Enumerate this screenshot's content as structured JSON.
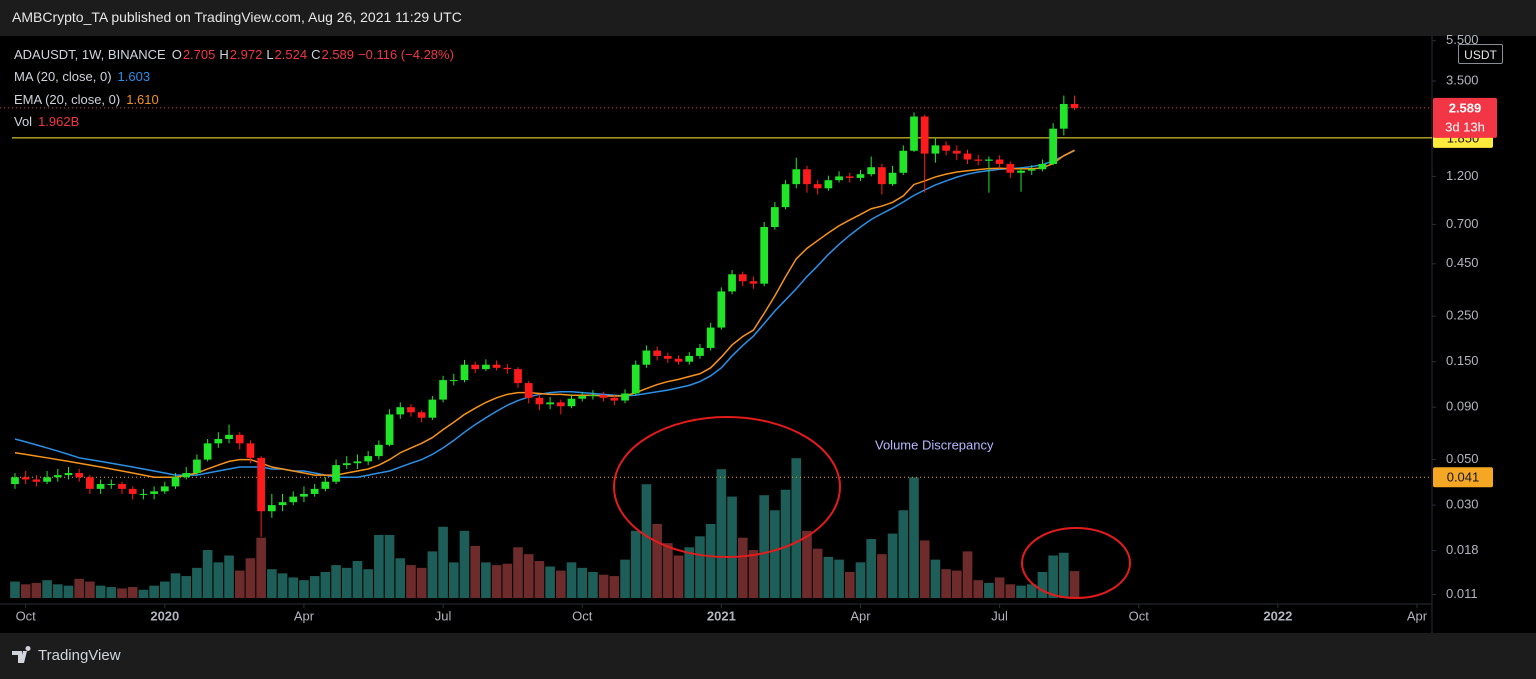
{
  "header": {
    "publisher": "AMBCrypto_TA published on TradingView.com, Aug 26, 2021 11:29 UTC",
    "brand": "TradingView"
  },
  "chart_data": {
    "type": "candlestick",
    "symbol": "ADAUSDT, 1W, BINANCE",
    "ohlc_labels": [
      {
        "key": "O",
        "value": "2.705"
      },
      {
        "key": "H",
        "value": "2.972"
      },
      {
        "key": "L",
        "value": "2.524"
      },
      {
        "key": "C",
        "value": "2.589"
      }
    ],
    "change_label": "−0.116 (−4.28%)",
    "currency": "USDT",
    "countdown": "3d 13h",
    "log_scale": true,
    "grid": false,
    "up_color": "#22e52a",
    "down_color": "#ff1b1b",
    "open": [
      0.038,
      0.041,
      0.04,
      0.039,
      0.041,
      0.042,
      0.043,
      0.041,
      0.036,
      0.038,
      0.038,
      0.036,
      0.034,
      0.034,
      0.035,
      0.037,
      0.041,
      0.043,
      0.05,
      0.06,
      0.063,
      0.066,
      0.06,
      0.051,
      0.028,
      0.03,
      0.031,
      0.033,
      0.034,
      0.036,
      0.039,
      0.047,
      0.048,
      0.049,
      0.052,
      0.059,
      0.083,
      0.09,
      0.085,
      0.08,
      0.098,
      0.122,
      0.122,
      0.145,
      0.138,
      0.145,
      0.14,
      0.138,
      0.118,
      0.1,
      0.093,
      0.095,
      0.091,
      0.099,
      0.102,
      0.103,
      0.1,
      0.097,
      0.105,
      0.145,
      0.17,
      0.16,
      0.155,
      0.15,
      0.16,
      0.175,
      0.22,
      0.33,
      0.4,
      0.37,
      0.36,
      0.68,
      0.85,
      1.1,
      1.3,
      1.1,
      1.05,
      1.15,
      1.2,
      1.18,
      1.23,
      1.33,
      1.1,
      1.25,
      1.6,
      2.35,
      1.55,
      1.7,
      1.6,
      1.55,
      1.45,
      1.43,
      1.45,
      1.38,
      1.25,
      1.28,
      1.3,
      1.38,
      2.05,
      2.705
    ],
    "high": [
      0.043,
      0.044,
      0.042,
      0.044,
      0.045,
      0.046,
      0.045,
      0.042,
      0.04,
      0.04,
      0.039,
      0.037,
      0.036,
      0.037,
      0.039,
      0.043,
      0.046,
      0.053,
      0.063,
      0.068,
      0.074,
      0.068,
      0.062,
      0.052,
      0.034,
      0.034,
      0.035,
      0.037,
      0.038,
      0.041,
      0.05,
      0.052,
      0.053,
      0.055,
      0.062,
      0.088,
      0.095,
      0.093,
      0.087,
      0.102,
      0.128,
      0.131,
      0.153,
      0.15,
      0.154,
      0.152,
      0.146,
      0.141,
      0.121,
      0.104,
      0.101,
      0.098,
      0.104,
      0.107,
      0.109,
      0.107,
      0.103,
      0.11,
      0.152,
      0.18,
      0.178,
      0.166,
      0.161,
      0.167,
      0.183,
      0.232,
      0.345,
      0.42,
      0.412,
      0.39,
      0.72,
      0.9,
      1.15,
      1.48,
      1.35,
      1.15,
      1.21,
      1.27,
      1.25,
      1.29,
      1.5,
      1.38,
      1.35,
      1.7,
      2.46,
      2.4,
      1.85,
      1.78,
      1.7,
      1.62,
      1.53,
      1.5,
      1.52,
      1.42,
      1.33,
      1.36,
      1.45,
      2.18,
      2.97,
      2.972
    ],
    "low": [
      0.036,
      0.038,
      0.037,
      0.038,
      0.039,
      0.04,
      0.039,
      0.034,
      0.034,
      0.036,
      0.034,
      0.032,
      0.032,
      0.032,
      0.034,
      0.036,
      0.04,
      0.042,
      0.049,
      0.057,
      0.06,
      0.056,
      0.048,
      0.021,
      0.026,
      0.028,
      0.03,
      0.031,
      0.033,
      0.035,
      0.038,
      0.045,
      0.045,
      0.047,
      0.05,
      0.058,
      0.079,
      0.081,
      0.076,
      0.078,
      0.095,
      0.115,
      0.119,
      0.132,
      0.135,
      0.136,
      0.131,
      0.112,
      0.094,
      0.087,
      0.088,
      0.083,
      0.089,
      0.096,
      0.098,
      0.096,
      0.092,
      0.094,
      0.103,
      0.14,
      0.152,
      0.148,
      0.145,
      0.145,
      0.155,
      0.17,
      0.215,
      0.32,
      0.35,
      0.34,
      0.35,
      0.66,
      0.83,
      1.05,
      1.0,
      0.98,
      1.02,
      1.12,
      1.12,
      1.14,
      1.2,
      0.98,
      1.08,
      1.22,
      1.58,
      1.0,
      1.4,
      1.52,
      1.44,
      1.38,
      1.36,
      1.0,
      1.31,
      1.18,
      1.01,
      1.22,
      1.27,
      1.36,
      1.9,
      2.524
    ],
    "close": [
      0.041,
      0.04,
      0.039,
      0.041,
      0.042,
      0.043,
      0.041,
      0.036,
      0.038,
      0.038,
      0.036,
      0.034,
      0.034,
      0.035,
      0.037,
      0.041,
      0.043,
      0.05,
      0.06,
      0.063,
      0.066,
      0.06,
      0.051,
      0.028,
      0.03,
      0.031,
      0.033,
      0.034,
      0.036,
      0.039,
      0.047,
      0.048,
      0.049,
      0.052,
      0.059,
      0.083,
      0.09,
      0.085,
      0.08,
      0.098,
      0.122,
      0.122,
      0.145,
      0.138,
      0.145,
      0.14,
      0.138,
      0.118,
      0.1,
      0.093,
      0.095,
      0.091,
      0.099,
      0.102,
      0.103,
      0.1,
      0.097,
      0.105,
      0.145,
      0.17,
      0.16,
      0.155,
      0.15,
      0.16,
      0.175,
      0.22,
      0.33,
      0.4,
      0.37,
      0.36,
      0.68,
      0.85,
      1.1,
      1.3,
      1.1,
      1.05,
      1.15,
      1.2,
      1.18,
      1.23,
      1.33,
      1.1,
      1.25,
      1.6,
      2.35,
      1.55,
      1.7,
      1.6,
      1.55,
      1.45,
      1.43,
      1.45,
      1.38,
      1.25,
      1.28,
      1.3,
      1.38,
      2.05,
      2.705,
      2.589
    ],
    "last_price": {
      "value": 2.589,
      "label": "2.589",
      "color": "#f23645"
    },
    "overlays": [
      {
        "name": "MA (20, close, 0)",
        "color": "#2b90e8",
        "value_label": "1.603",
        "values": [
          0.063,
          0.061,
          0.059,
          0.057,
          0.055,
          0.053,
          0.051,
          0.05,
          0.049,
          0.048,
          0.047,
          0.046,
          0.045,
          0.044,
          0.043,
          0.042,
          0.042,
          0.042,
          0.043,
          0.044,
          0.045,
          0.046,
          0.046,
          0.046,
          0.045,
          0.045,
          0.044,
          0.044,
          0.043,
          0.042,
          0.041,
          0.041,
          0.041,
          0.042,
          0.043,
          0.044,
          0.046,
          0.048,
          0.05,
          0.053,
          0.057,
          0.062,
          0.068,
          0.074,
          0.08,
          0.086,
          0.092,
          0.097,
          0.101,
          0.104,
          0.106,
          0.107,
          0.107,
          0.106,
          0.105,
          0.104,
          0.103,
          0.102,
          0.103,
          0.105,
          0.107,
          0.109,
          0.112,
          0.115,
          0.12,
          0.128,
          0.14,
          0.16,
          0.18,
          0.2,
          0.23,
          0.265,
          0.3,
          0.34,
          0.39,
          0.44,
          0.5,
          0.56,
          0.62,
          0.68,
          0.74,
          0.79,
          0.84,
          0.9,
          0.97,
          1.03,
          1.09,
          1.14,
          1.19,
          1.23,
          1.26,
          1.28,
          1.3,
          1.31,
          1.32,
          1.34,
          1.37,
          1.43,
          1.51,
          1.603
        ]
      },
      {
        "name": "EMA (20, close, 0)",
        "color": "#f7931a",
        "value_label": "1.610",
        "values": [
          0.054,
          0.053,
          0.052,
          0.051,
          0.05,
          0.049,
          0.048,
          0.047,
          0.046,
          0.045,
          0.044,
          0.043,
          0.042,
          0.041,
          0.041,
          0.041,
          0.042,
          0.043,
          0.045,
          0.047,
          0.049,
          0.05,
          0.05,
          0.048,
          0.046,
          0.045,
          0.044,
          0.043,
          0.042,
          0.042,
          0.042,
          0.043,
          0.044,
          0.045,
          0.047,
          0.05,
          0.054,
          0.057,
          0.06,
          0.064,
          0.07,
          0.076,
          0.083,
          0.089,
          0.095,
          0.1,
          0.104,
          0.106,
          0.106,
          0.105,
          0.104,
          0.104,
          0.103,
          0.103,
          0.103,
          0.102,
          0.102,
          0.102,
          0.106,
          0.111,
          0.116,
          0.12,
          0.123,
          0.127,
          0.131,
          0.14,
          0.158,
          0.181,
          0.199,
          0.214,
          0.258,
          0.314,
          0.389,
          0.476,
          0.535,
          0.584,
          0.637,
          0.69,
          0.736,
          0.783,
          0.835,
          0.86,
          0.897,
          0.964,
          1.096,
          1.14,
          1.193,
          1.231,
          1.261,
          1.279,
          1.294,
          1.309,
          1.315,
          1.309,
          1.307,
          1.307,
          1.318,
          1.388,
          1.514,
          1.61
        ]
      }
    ],
    "volume": {
      "name": "Vol",
      "value_label": "1.962B",
      "up_color": "#1d5e58",
      "down_color": "#6e2b2b",
      "vlim": [
        0,
        41
      ],
      "values": [
        1.2,
        1.0,
        1.1,
        1.3,
        1.0,
        0.9,
        1.4,
        1.2,
        0.9,
        0.8,
        0.7,
        0.8,
        0.6,
        0.9,
        1.2,
        1.8,
        1.6,
        2.2,
        3.5,
        2.6,
        3.1,
        2.0,
        2.9,
        4.4,
        2.1,
        1.8,
        1.5,
        1.3,
        1.6,
        1.9,
        2.4,
        2.2,
        2.7,
        2.1,
        4.6,
        4.6,
        2.9,
        2.4,
        2.2,
        3.4,
        5.2,
        2.6,
        4.9,
        3.8,
        2.6,
        2.4,
        2.5,
        3.7,
        3.2,
        2.7,
        2.3,
        2.0,
        2.6,
        2.2,
        1.9,
        1.7,
        1.6,
        2.8,
        4.9,
        8.3,
        5.4,
        4.0,
        3.1,
        3.7,
        4.5,
        5.4,
        9.4,
        7.4,
        4.4,
        3.5,
        7.5,
        6.4,
        7.9,
        10.2,
        4.9,
        3.6,
        3.0,
        2.8,
        1.9,
        2.6,
        4.3,
        3.2,
        4.7,
        6.4,
        8.8,
        4.2,
        2.8,
        2.1,
        2.0,
        3.4,
        1.3,
        1.1,
        1.5,
        1.0,
        0.9,
        1.0,
        1.9,
        3.1,
        3.3,
        1.962
      ]
    },
    "levels": [
      {
        "value": 1.85,
        "label": "1.850",
        "color": "#ffeb3b",
        "style": "solid"
      },
      {
        "value": 0.041,
        "label": "0.041",
        "color": "#f5a623",
        "style": "dotted"
      }
    ],
    "annotation": "Volume Discrepancy",
    "ylim": [
      0.01,
      5.8
    ],
    "yticks": [
      {
        "value": 5.5,
        "label": "5.500"
      },
      {
        "value": 3.5,
        "label": "3.500"
      },
      {
        "value": 1.2,
        "label": "1.200"
      },
      {
        "value": 0.7,
        "label": "0.700"
      },
      {
        "value": 0.45,
        "label": "0.450"
      },
      {
        "value": 0.25,
        "label": "0.250"
      },
      {
        "value": 0.15,
        "label": "0.150"
      },
      {
        "value": 0.09,
        "label": "0.090"
      },
      {
        "value": 0.05,
        "label": "0.050"
      },
      {
        "value": 0.03,
        "label": "0.030"
      },
      {
        "value": 0.018,
        "label": "0.018"
      },
      {
        "value": 0.011,
        "label": "0.011"
      }
    ],
    "xlim": [
      -1.4,
      132.4
    ],
    "xticks": [
      {
        "value": 1,
        "label": "Oct"
      },
      {
        "value": 14,
        "label": "2020"
      },
      {
        "value": 27,
        "label": "Apr"
      },
      {
        "value": 40,
        "label": "Jul"
      },
      {
        "value": 53,
        "label": "Oct"
      },
      {
        "value": 66,
        "label": "2021"
      },
      {
        "value": 79,
        "label": "Apr"
      },
      {
        "value": 92,
        "label": "Jul"
      },
      {
        "value": 105,
        "label": "Oct"
      },
      {
        "value": 118,
        "label": "2022"
      },
      {
        "value": 131,
        "label": "Apr"
      }
    ]
  }
}
